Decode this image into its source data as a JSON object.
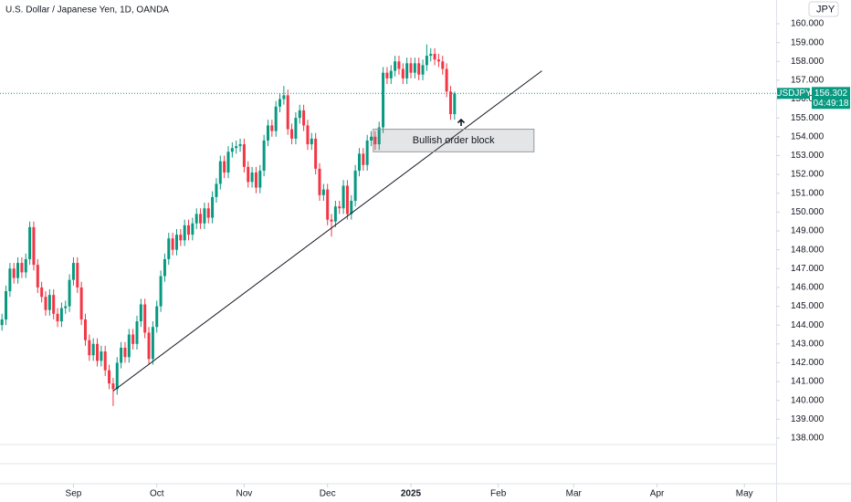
{
  "chart_data": {
    "type": "candlestick",
    "title": "U.S. Dollar / Japanese Yen, 1D, OANDA",
    "currency": "JPY",
    "symbol": "USDJPY",
    "last_price": {
      "value": 156.302,
      "label": "156.302"
    },
    "countdown": "04:49:18",
    "up_color": "#089981",
    "down_color": "#f23645",
    "open": [
      144.0,
      144.3,
      145.8,
      147.0,
      146.5,
      147.3,
      146.8,
      147.5,
      149.2,
      147.2,
      146.0,
      145.5,
      144.8,
      145.6,
      144.6,
      144.2,
      144.9,
      145.0,
      146.4,
      147.3,
      146.0,
      144.3,
      143.2,
      142.4,
      143.0,
      142.1,
      142.6,
      141.6,
      140.9,
      140.6,
      142.0,
      142.8,
      142.3,
      143.5,
      143.0,
      144.2,
      145.1,
      143.6,
      142.2,
      143.9,
      145.0,
      146.6,
      147.5,
      148.6,
      148.0,
      148.8,
      148.5,
      149.3,
      148.8,
      149.4,
      149.9,
      149.4,
      150.2,
      149.7,
      150.8,
      151.5,
      152.7,
      152.1,
      153.2,
      153.4,
      153.5,
      153.6,
      152.4,
      151.6,
      152.1,
      151.3,
      152.2,
      153.8,
      154.6,
      154.3,
      155.6,
      156.0,
      156.2,
      154.4,
      153.9,
      155.0,
      155.4,
      154.6,
      153.6,
      153.9,
      152.3,
      150.9,
      151.2,
      149.6,
      149.5,
      150.3,
      150.2,
      151.4,
      149.9,
      150.6,
      152.2,
      153.1,
      152.5,
      153.8,
      154.0,
      153.6,
      154.5,
      157.4,
      157.1,
      157.5,
      158.0,
      157.6,
      157.1,
      157.9,
      157.4,
      157.9,
      157.3,
      157.8,
      158.3,
      158.4,
      158.1,
      158.0,
      157.6,
      156.4,
      155.2
    ],
    "high": [
      144.6,
      146.1,
      147.3,
      147.3,
      147.6,
      147.6,
      147.8,
      149.5,
      149.5,
      147.5,
      146.3,
      145.8,
      145.9,
      145.9,
      144.9,
      145.2,
      145.3,
      146.7,
      147.6,
      147.6,
      146.3,
      144.6,
      143.5,
      143.3,
      143.3,
      142.9,
      142.9,
      141.9,
      141.2,
      142.3,
      143.1,
      143.1,
      143.8,
      143.8,
      144.5,
      145.4,
      145.4,
      143.9,
      144.2,
      145.3,
      146.9,
      147.8,
      148.9,
      148.9,
      149.1,
      149.1,
      149.6,
      149.6,
      149.7,
      150.2,
      150.2,
      150.5,
      150.5,
      151.1,
      151.8,
      153.0,
      153.0,
      153.5,
      153.7,
      153.8,
      153.9,
      153.9,
      152.7,
      152.4,
      152.4,
      152.5,
      154.1,
      154.9,
      154.9,
      155.9,
      156.3,
      156.7,
      156.5,
      154.7,
      155.3,
      155.7,
      155.7,
      154.9,
      154.2,
      154.2,
      152.6,
      151.5,
      151.5,
      149.9,
      150.6,
      150.6,
      151.7,
      151.7,
      150.9,
      152.5,
      153.4,
      153.4,
      154.1,
      154.3,
      154.3,
      154.8,
      157.7,
      157.7,
      157.8,
      158.3,
      158.3,
      157.9,
      158.2,
      158.2,
      158.2,
      158.2,
      158.1,
      158.9,
      158.7,
      158.7,
      158.4,
      158.3,
      157.9,
      156.7,
      156.4
    ],
    "low": [
      143.7,
      144.0,
      145.5,
      146.2,
      146.2,
      146.5,
      146.5,
      147.2,
      146.9,
      145.7,
      145.2,
      144.5,
      144.5,
      144.3,
      143.9,
      143.9,
      144.6,
      144.7,
      146.1,
      145.7,
      144.0,
      142.9,
      142.1,
      142.1,
      141.8,
      141.8,
      141.3,
      140.6,
      139.7,
      140.3,
      141.7,
      142.0,
      142.0,
      142.7,
      142.7,
      143.9,
      143.3,
      141.9,
      141.9,
      143.6,
      144.7,
      146.3,
      147.2,
      147.7,
      147.7,
      148.2,
      148.2,
      148.5,
      148.5,
      149.1,
      149.1,
      149.1,
      149.4,
      149.4,
      150.5,
      151.2,
      151.8,
      151.8,
      152.9,
      153.1,
      153.2,
      152.1,
      151.3,
      151.3,
      151.0,
      151.0,
      151.9,
      153.5,
      154.0,
      154.0,
      155.3,
      155.7,
      154.1,
      153.6,
      153.6,
      154.7,
      154.3,
      153.3,
      153.3,
      152.0,
      150.6,
      150.6,
      149.3,
      148.7,
      149.2,
      149.9,
      149.9,
      149.6,
      149.6,
      150.3,
      151.9,
      152.2,
      152.2,
      153.5,
      153.3,
      153.3,
      154.2,
      156.8,
      156.8,
      157.2,
      157.3,
      156.8,
      156.8,
      157.1,
      157.1,
      157.0,
      157.0,
      157.5,
      158.0,
      157.8,
      157.7,
      157.3,
      156.1,
      154.9,
      154.9
    ],
    "close": [
      144.3,
      145.8,
      147.0,
      146.5,
      147.3,
      146.8,
      147.5,
      149.2,
      147.2,
      146.0,
      145.5,
      144.8,
      145.6,
      144.6,
      144.2,
      144.9,
      145.0,
      146.4,
      147.3,
      146.0,
      144.3,
      143.2,
      142.4,
      143.0,
      142.1,
      142.6,
      141.6,
      140.9,
      140.6,
      142.0,
      142.8,
      142.3,
      143.5,
      143.0,
      144.2,
      145.1,
      143.6,
      142.2,
      143.9,
      145.0,
      146.6,
      147.5,
      148.6,
      148.0,
      148.8,
      148.5,
      149.3,
      148.8,
      149.4,
      149.9,
      149.4,
      150.2,
      149.7,
      150.8,
      151.5,
      152.7,
      152.1,
      153.2,
      153.4,
      153.5,
      153.6,
      152.4,
      151.6,
      152.1,
      151.3,
      152.2,
      153.8,
      154.6,
      154.3,
      155.6,
      156.0,
      156.2,
      154.4,
      153.9,
      155.0,
      155.4,
      154.6,
      153.6,
      153.9,
      152.3,
      150.9,
      151.2,
      149.6,
      149.5,
      150.3,
      150.2,
      151.4,
      149.9,
      150.6,
      152.2,
      153.1,
      152.5,
      153.8,
      154.0,
      153.6,
      154.5,
      157.4,
      157.1,
      157.5,
      158.0,
      157.6,
      157.1,
      157.9,
      157.4,
      157.9,
      157.3,
      157.8,
      158.3,
      158.4,
      158.1,
      158.0,
      157.6,
      156.4,
      155.2,
      156.3
    ],
    "trendline": {
      "x": [
        28,
        136
      ],
      "y": [
        140.5,
        157.5
      ]
    },
    "order_block": {
      "label": "Bullish order block",
      "x": [
        93.5,
        134
      ],
      "y": [
        153.2,
        154.4
      ]
    },
    "xlim": [
      -0.5,
      195
    ],
    "ylim": [
      137.66,
      161.26
    ],
    "xticks": [
      {
        "value": 18,
        "label": "Sep"
      },
      {
        "value": 39,
        "label": "Oct"
      },
      {
        "value": 61,
        "label": "Nov"
      },
      {
        "value": 82,
        "label": "Dec"
      },
      {
        "value": 103,
        "label": "2025"
      },
      {
        "value": 125,
        "label": "Feb"
      },
      {
        "value": 144,
        "label": "Mar"
      },
      {
        "value": 165,
        "label": "Apr"
      },
      {
        "value": 187,
        "label": "May"
      }
    ],
    "yticks": [
      {
        "value": 138,
        "label": "138.000"
      },
      {
        "value": 139,
        "label": "139.000"
      },
      {
        "value": 140,
        "label": "140.000"
      },
      {
        "value": 141,
        "label": "141.000"
      },
      {
        "value": 142,
        "label": "142.000"
      },
      {
        "value": 143,
        "label": "143.000"
      },
      {
        "value": 144,
        "label": "144.000"
      },
      {
        "value": 145,
        "label": "145.000"
      },
      {
        "value": 146,
        "label": "146.000"
      },
      {
        "value": 147,
        "label": "147.000"
      },
      {
        "value": 148,
        "label": "148.000"
      },
      {
        "value": 149,
        "label": "149.000"
      },
      {
        "value": 150,
        "label": "150.000"
      },
      {
        "value": 151,
        "label": "151.000"
      },
      {
        "value": 152,
        "label": "152.000"
      },
      {
        "value": 153,
        "label": "153.000"
      },
      {
        "value": 154,
        "label": "154.000"
      },
      {
        "value": 155,
        "label": "155.000"
      },
      {
        "value": 156,
        "label": "156.000"
      },
      {
        "value": 157,
        "label": "157.000"
      },
      {
        "value": 158,
        "label": "158.000"
      },
      {
        "value": 159,
        "label": "159.000"
      },
      {
        "value": 160,
        "label": "160.000"
      }
    ],
    "grid": false
  }
}
